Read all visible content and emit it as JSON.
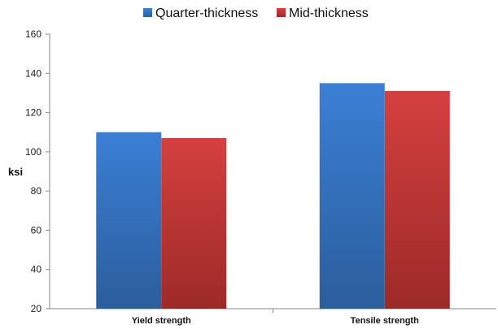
{
  "chart_data": {
    "type": "bar",
    "title": "",
    "xlabel": "",
    "ylabel": "ksi",
    "ylim": [
      20,
      160
    ],
    "yticks": [
      20,
      40,
      60,
      80,
      100,
      120,
      140,
      160
    ],
    "categories": [
      "Yield strength",
      "Tensile strength"
    ],
    "series": [
      {
        "name": "Quarter-thickness",
        "color": "#3a78c9",
        "values": [
          110,
          135
        ]
      },
      {
        "name": "Mid-thickness",
        "color": "#c8383a",
        "values": [
          107,
          131
        ]
      }
    ],
    "legend_position": "top",
    "grid": false
  }
}
